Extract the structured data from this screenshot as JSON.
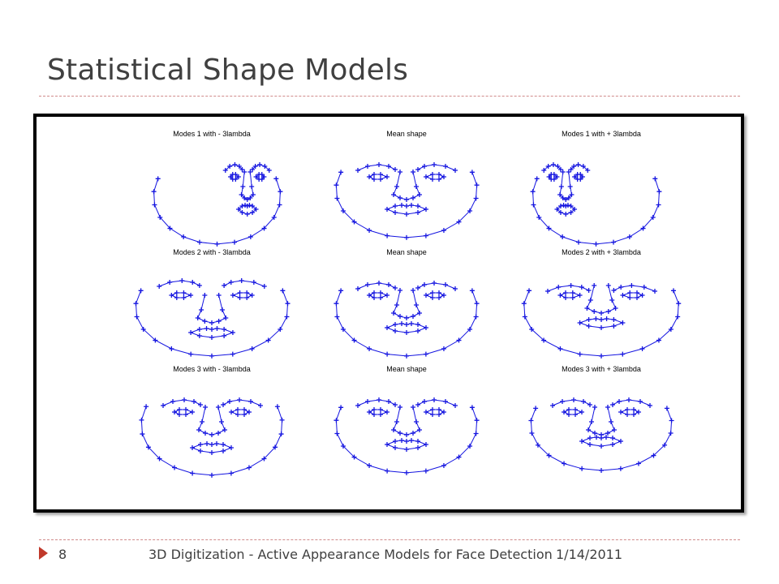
{
  "slide": {
    "title": "Statistical Shape Models",
    "page_number": "8",
    "footer_caption": "3D Digitization - Active Appearance Models for Face Detection",
    "date": "1/14/2011"
  },
  "figure": {
    "marker_color": "#1515e0",
    "panels": [
      {
        "title": "Modes 1 with - 3lambda",
        "mode": 1,
        "sign": -1
      },
      {
        "title": "Mean shape",
        "mode": 0,
        "sign": 0
      },
      {
        "title": "Modes 1 with + 3lambda",
        "mode": 1,
        "sign": 1
      },
      {
        "title": "Modes 2 with - 3lambda",
        "mode": 2,
        "sign": -1
      },
      {
        "title": "Mean shape",
        "mode": 0,
        "sign": 0
      },
      {
        "title": "Modes 2 with + 3lambda",
        "mode": 2,
        "sign": 1
      },
      {
        "title": "Modes 3 with - 3lambda",
        "mode": 3,
        "sign": -1
      },
      {
        "title": "Mean shape",
        "mode": 0,
        "sign": 0
      },
      {
        "title": "Modes 3 with + 3lambda",
        "mode": 3,
        "sign": 1
      }
    ]
  }
}
